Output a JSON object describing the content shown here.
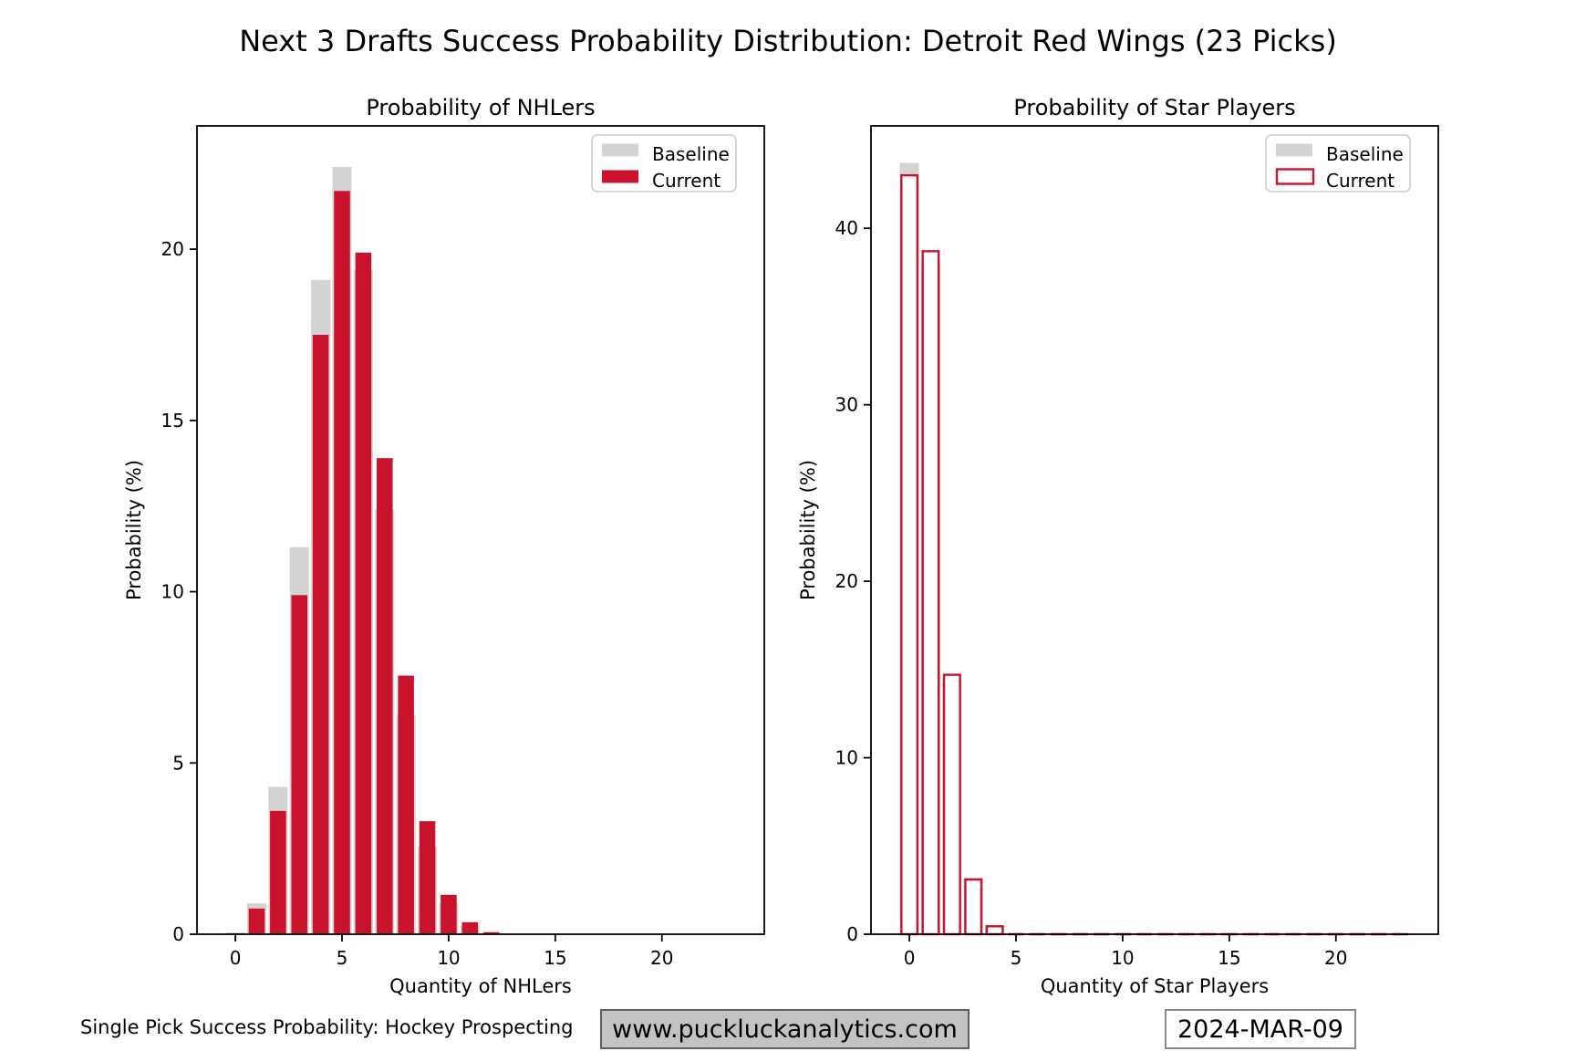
{
  "title": "Next 3 Drafts Success Probability Distribution: Detroit Red Wings (23 Picks)",
  "footer": {
    "left_text": "Single Pick Success Probability: Hockey Prospecting",
    "website": "www.puckluckanalytics.com",
    "date": "2024-MAR-09"
  },
  "legend": {
    "baseline_label": "Baseline",
    "current_label": "Current",
    "position": "top-right"
  },
  "colors": {
    "baseline": "#d3d3d3",
    "current": "#c9132c",
    "axis": "#000000",
    "legend_border": "#cccccc",
    "website_box_bg": "#c3c3c3",
    "website_box_border": "#5f5f5f",
    "date_box_border": "#8a8a8a"
  },
  "chart_data": [
    {
      "type": "bar",
      "title": "Probability of NHLers",
      "xlabel": "Quantity of NHLers",
      "ylabel": "Probability (%)",
      "grid": false,
      "legend_position": "top-right",
      "categories": [
        0,
        1,
        2,
        3,
        4,
        5,
        6,
        7,
        8,
        9,
        10,
        11,
        12
      ],
      "series": [
        {
          "name": "Baseline",
          "style": "filled",
          "color": "#d3d3d3",
          "values": [
            0.05,
            0.9,
            4.3,
            11.3,
            19.1,
            22.4,
            19.4,
            12.4,
            6.4,
            2.55,
            0.9,
            0.25,
            0.03
          ]
        },
        {
          "name": "Current",
          "style": "filled",
          "color": "#c9132c",
          "values": [
            0.02,
            0.75,
            3.6,
            9.9,
            17.5,
            21.7,
            19.9,
            13.9,
            7.55,
            3.3,
            1.15,
            0.35,
            0.06
          ]
        }
      ],
      "xticks": [
        0,
        5,
        10,
        15,
        20
      ],
      "yticks": [
        0,
        5,
        10,
        15,
        20
      ],
      "xlim": [
        -1.8,
        24.8
      ],
      "ylim": [
        0,
        23.6
      ]
    },
    {
      "type": "bar",
      "title": "Probability of Star Players",
      "xlabel": "Quantity of Star Players",
      "ylabel": "Probability (%)",
      "grid": false,
      "legend_position": "top-right",
      "categories": [
        0,
        1,
        2,
        3,
        4,
        5,
        6,
        7,
        8,
        9,
        10,
        11,
        12,
        13,
        14,
        15,
        16,
        17,
        18,
        19,
        20,
        21,
        22,
        23
      ],
      "series": [
        {
          "name": "Baseline",
          "style": "filled",
          "color": "#d3d3d3",
          "values": [
            43.7,
            38.0,
            14.4,
            3.2,
            0.5,
            0,
            0,
            0,
            0,
            0,
            0,
            0,
            0,
            0,
            0,
            0,
            0,
            0,
            0,
            0,
            0,
            0,
            0,
            0
          ]
        },
        {
          "name": "Current",
          "style": "outline",
          "color": "#c9132c",
          "values": [
            43.0,
            38.7,
            14.7,
            3.1,
            0.45,
            0,
            0,
            0,
            0,
            0,
            0,
            0,
            0,
            0,
            0,
            0,
            0,
            0,
            0,
            0,
            0,
            0,
            0,
            0
          ]
        }
      ],
      "xticks": [
        0,
        5,
        10,
        15,
        20
      ],
      "yticks": [
        0,
        10,
        20,
        30,
        40
      ],
      "xlim": [
        -1.8,
        24.8
      ],
      "ylim": [
        0,
        45.8
      ]
    }
  ]
}
